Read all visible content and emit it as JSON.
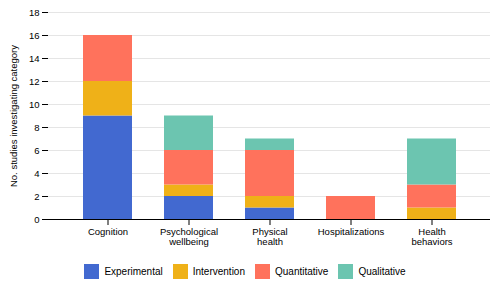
{
  "chart_data": {
    "type": "bar",
    "stacked": true,
    "categories": [
      "Cognition",
      "Psychological\nwellbeing",
      "Physical\nhealth",
      "Hospitalizations",
      "Health\nbehaviors"
    ],
    "series": [
      {
        "name": "Experimental",
        "values": [
          9,
          2,
          1,
          0,
          0
        ]
      },
      {
        "name": "Intervention",
        "values": [
          3,
          1,
          1,
          0,
          1
        ]
      },
      {
        "name": "Quantitative",
        "values": [
          4,
          3,
          4,
          2,
          2
        ]
      },
      {
        "name": "Qualitative",
        "values": [
          0,
          3,
          1,
          0,
          4
        ]
      }
    ],
    "ylabel": "No. studies investigating category",
    "ylim": [
      0,
      18
    ],
    "yticks": [
      0,
      2,
      4,
      6,
      8,
      10,
      12,
      14,
      16,
      18
    ],
    "grid": true,
    "legend": "bottom"
  }
}
